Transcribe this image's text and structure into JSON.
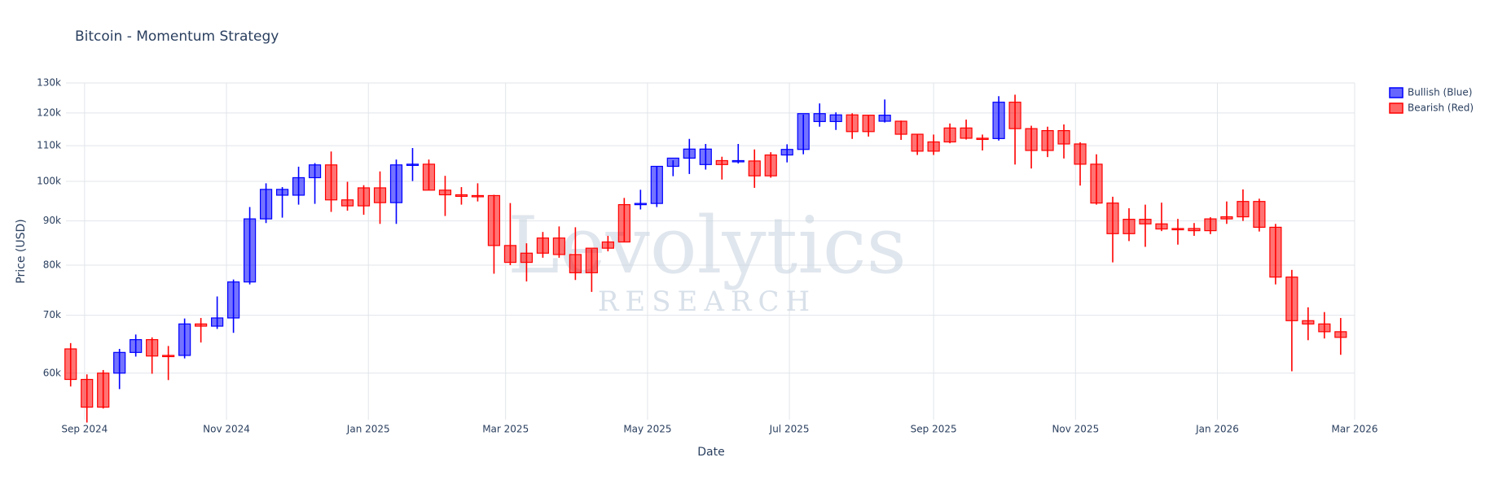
{
  "chart_data": {
    "type": "candlestick",
    "title": "Bitcoin - Momentum Strategy",
    "x_label": "Date",
    "y_label": "Price (USD)",
    "watermark": [
      "Levolytics",
      "RESEARCH"
    ],
    "log_y": true,
    "grid": true,
    "legend": "right",
    "xlim": [
      "2024-08-24",
      "2026-03-01"
    ],
    "xticks": [
      {
        "value": "2024-09-01",
        "label": "Sep 2024"
      },
      {
        "value": "2024-11-01",
        "label": "Nov 2024"
      },
      {
        "value": "2025-01-01",
        "label": "Jan 2025"
      },
      {
        "value": "2025-03-01",
        "label": "Mar 2025"
      },
      {
        "value": "2025-05-01",
        "label": "May 2025"
      },
      {
        "value": "2025-07-01",
        "label": "Jul 2025"
      },
      {
        "value": "2025-09-01",
        "label": "Sep 2025"
      },
      {
        "value": "2025-11-01",
        "label": "Nov 2025"
      },
      {
        "value": "2026-01-01",
        "label": "Jan 2026"
      },
      {
        "value": "2026-03-01",
        "label": "Mar 2026"
      }
    ],
    "ylim": [
      53000,
      130000
    ],
    "yticks": [
      {
        "value": 60000,
        "label": "60k"
      },
      {
        "value": 70000,
        "label": "70k"
      },
      {
        "value": 80000,
        "label": "80k"
      },
      {
        "value": 90000,
        "label": "90k"
      },
      {
        "value": 100000,
        "label": "100k"
      },
      {
        "value": 110000,
        "label": "110k"
      },
      {
        "value": 120000,
        "label": "120k"
      },
      {
        "value": 130000,
        "label": "130k"
      }
    ],
    "series": [
      {
        "name": "Bullish (Blue)",
        "color": "#0000ff",
        "x": [
          "2024-09-16",
          "2024-09-23",
          "2024-10-14",
          "2024-10-28",
          "2024-11-04",
          "2024-11-11",
          "2024-11-18",
          "2024-11-25",
          "2024-12-02",
          "2024-12-09",
          "2025-01-13",
          "2025-01-20",
          "2025-04-28",
          "2025-05-05",
          "2025-05-12",
          "2025-05-19",
          "2025-05-26",
          "2025-06-09",
          "2025-06-30",
          "2025-07-07",
          "2025-07-14",
          "2025-07-21",
          "2025-08-11",
          "2025-09-29"
        ],
        "open": [
          60000,
          63400,
          62900,
          68000,
          69500,
          76500,
          90500,
          97900,
          96400,
          101000,
          94500,
          104500,
          94000,
          94300,
          104100,
          106400,
          109000,
          105700,
          107300,
          108900,
          119800,
          117300,
          119300,
          112100
        ],
        "high": [
          64000,
          66500,
          69400,
          73600,
          77000,
          93400,
          99500,
          98500,
          104000,
          105000,
          106000,
          109300,
          97800,
          104000,
          105800,
          112000,
          110500,
          110500,
          110400,
          119500,
          123100,
          120200,
          124400,
          125500
        ],
        "low": [
          57500,
          62700,
          62400,
          67500,
          66800,
          76000,
          89500,
          90800,
          94000,
          94200,
          89300,
          100100,
          92800,
          93400,
          101400,
          102000,
          103200,
          104900,
          105200,
          107500,
          115700,
          114700,
          117000,
          111500
        ],
        "close": [
          63400,
          65600,
          68400,
          69500,
          76500,
          90500,
          97900,
          96400,
          101000,
          104500,
          104500,
          104700,
          94300,
          104100,
          106400,
          109000,
          104600,
          105600,
          108900,
          119800,
          117300,
          119400,
          117400,
          123500
        ]
      },
      {
        "name": "Bearish (Red)",
        "color": "#ff0000",
        "x": [
          "2024-08-26",
          "2024-09-02",
          "2024-09-09",
          "2024-09-30",
          "2024-10-07",
          "2024-10-21",
          "2024-12-16",
          "2024-12-23",
          "2024-12-30",
          "2025-01-06",
          "2025-01-27",
          "2025-02-03",
          "2025-02-10",
          "2025-02-17",
          "2025-02-24",
          "2025-03-03",
          "2025-03-10",
          "2025-03-17",
          "2025-03-24",
          "2025-03-31",
          "2025-04-07",
          "2025-04-14",
          "2025-04-21",
          "2025-06-02",
          "2025-06-16",
          "2025-06-23",
          "2025-07-28",
          "2025-08-04",
          "2025-08-18",
          "2025-08-25",
          "2025-09-01",
          "2025-09-08",
          "2025-09-15",
          "2025-09-22",
          "2025-10-06",
          "2025-10-13",
          "2025-10-20",
          "2025-10-27",
          "2025-11-03",
          "2025-11-10",
          "2025-11-17",
          "2025-11-24",
          "2025-12-01",
          "2025-12-08",
          "2025-12-15",
          "2025-12-22",
          "2025-12-29",
          "2026-01-05",
          "2026-01-12",
          "2026-01-19",
          "2026-01-26",
          "2026-02-02",
          "2026-02-09",
          "2026-02-16",
          "2026-02-23"
        ],
        "open": [
          64000,
          59000,
          54800,
          65600,
          62800,
          68400,
          104500,
          95200,
          93700,
          98300,
          104700,
          97700,
          96500,
          96100,
          96300,
          84300,
          80600,
          82600,
          86000,
          82300,
          78400,
          83700,
          85100,
          104600,
          105600,
          101500,
          119400,
          114200,
          117400,
          113400,
          108400,
          111100,
          115300,
          112200,
          123500,
          115100,
          108600,
          114500,
          110500,
          104700,
          94400,
          87000,
          90400,
          89300,
          88100,
          88200,
          87700,
          90500,
          91000,
          94800,
          88500,
          77500,
          69000,
          68400,
          67000
        ],
        "high": [
          65000,
          59800,
          60500,
          66000,
          64500,
          69500,
          108300,
          99900,
          99000,
          102700,
          106000,
          101500,
          98500,
          99500,
          96500,
          94400,
          84800,
          87400,
          88700,
          88500,
          83500,
          86500,
          95700,
          106800,
          108900,
          108100,
          119900,
          119300,
          117600,
          113500,
          113300,
          116700,
          117900,
          113300,
          126000,
          116000,
          115700,
          116400,
          111000,
          107500,
          96000,
          93100,
          94000,
          94500,
          90500,
          89500,
          90900,
          94800,
          97900,
          95500,
          89300,
          79000,
          71500,
          70600,
          69500
        ],
        "low": [
          57900,
          52600,
          54600,
          59900,
          58900,
          65100,
          92200,
          92500,
          91500,
          89300,
          97800,
          91200,
          94000,
          94800,
          78200,
          80000,
          76600,
          81600,
          81600,
          76900,
          74500,
          83000,
          85000,
          100500,
          98300,
          101000,
          112000,
          112700,
          111700,
          107300,
          107300,
          110700,
          111800,
          108600,
          104600,
          103500,
          106700,
          106300,
          98900,
          94000,
          80600,
          85300,
          84000,
          87600,
          84500,
          86500,
          86900,
          89300,
          90000,
          87500,
          76000,
          60300,
          65500,
          65800,
          63000
        ],
        "close": [
          59000,
          54800,
          60000,
          62800,
          62900,
          68000,
          95200,
          93700,
          98300,
          94500,
          97700,
          96500,
          96100,
          96300,
          84300,
          80600,
          82600,
          86000,
          82300,
          78400,
          83700,
          85100,
          94000,
          105700,
          101500,
          107300,
          114200,
          119300,
          113400,
          108400,
          111100,
          115300,
          112200,
          112100,
          115100,
          108600,
          114500,
          110500,
          104700,
          94400,
          87000,
          90400,
          89300,
          88100,
          88200,
          87700,
          90500,
          91000,
          94800,
          88500,
          77500,
          69000,
          68400,
          67000,
          66000
        ]
      }
    ]
  }
}
